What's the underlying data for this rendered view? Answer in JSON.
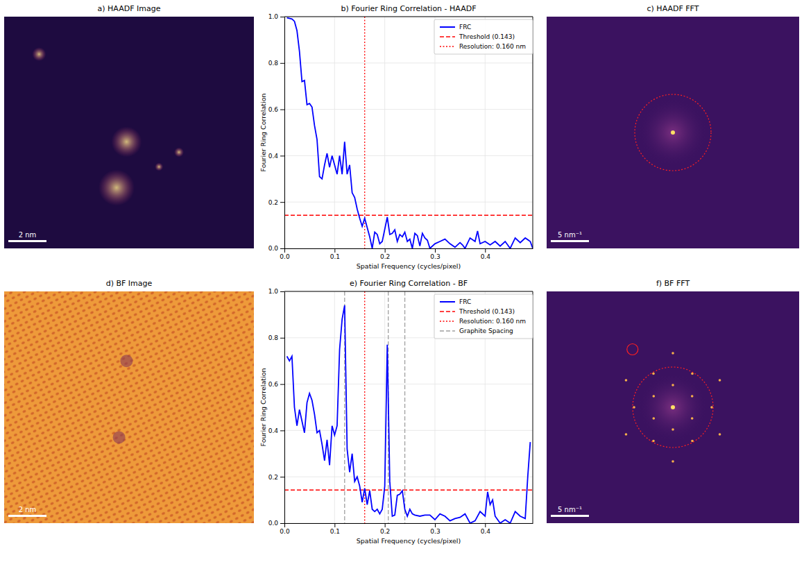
{
  "chart_data": [
    {
      "type": "image",
      "title": "a) HAADF Image",
      "annotations": [
        "2 nm"
      ]
    },
    {
      "type": "line",
      "title": "b) Fourier Ring Correlation - HAADF",
      "x_label": "Spatial Frequency (cycles/pixel)",
      "y_label": "Fourier Ring Correlation",
      "xlim": [
        0,
        0.495
      ],
      "ylim": [
        0,
        1
      ],
      "xticks": [
        {
          "value": 0,
          "label": "0.0"
        },
        {
          "value": 0.1,
          "label": "0.1"
        },
        {
          "value": 0.2,
          "label": "0.2"
        },
        {
          "value": 0.3,
          "label": "0.3"
        },
        {
          "value": 0.4,
          "label": "0.4"
        }
      ],
      "yticks": [
        {
          "value": 0,
          "label": "0.0"
        },
        {
          "value": 0.2,
          "label": "0.2"
        },
        {
          "value": 0.4,
          "label": "0.4"
        },
        {
          "value": 0.6,
          "label": "0.6"
        },
        {
          "value": 0.8,
          "label": "0.8"
        },
        {
          "value": 1,
          "label": "1.0"
        }
      ],
      "grid": true,
      "legend": "upper right",
      "x": [
        0.005,
        0.015,
        0.02,
        0.025,
        0.03,
        0.035,
        0.04,
        0.045,
        0.05,
        0.055,
        0.06,
        0.065,
        0.07,
        0.075,
        0.08,
        0.085,
        0.09,
        0.095,
        0.1,
        0.105,
        0.11,
        0.115,
        0.12,
        0.125,
        0.13,
        0.135,
        0.14,
        0.145,
        0.15,
        0.155,
        0.16,
        0.165,
        0.17,
        0.175,
        0.18,
        0.185,
        0.19,
        0.195,
        0.205,
        0.21,
        0.215,
        0.22,
        0.225,
        0.23,
        0.235,
        0.24,
        0.245,
        0.25,
        0.255,
        0.26,
        0.265,
        0.27,
        0.275,
        0.28,
        0.285,
        0.29,
        0.3,
        0.31,
        0.32,
        0.33,
        0.34,
        0.35,
        0.355,
        0.36,
        0.37,
        0.38,
        0.385,
        0.39,
        0.4,
        0.41,
        0.42,
        0.43,
        0.44,
        0.45,
        0.46,
        0.47,
        0.48,
        0.49,
        0.495
      ],
      "series": [
        {
          "name": "FRC",
          "color": "#0000ff",
          "line_style": "solid",
          "values": [
            0.995,
            0.99,
            0.98,
            0.94,
            0.85,
            0.72,
            0.725,
            0.62,
            0.625,
            0.61,
            0.53,
            0.47,
            0.31,
            0.3,
            0.36,
            0.41,
            0.35,
            0.4,
            0.36,
            0.32,
            0.4,
            0.32,
            0.46,
            0.32,
            0.36,
            0.24,
            0.22,
            0.17,
            0.13,
            0.095,
            0.13,
            0.09,
            0.05,
            0.0,
            0.07,
            0.06,
            0.02,
            0.03,
            0.135,
            0.06,
            0.065,
            0.08,
            0.03,
            0.06,
            0.05,
            0.07,
            0.03,
            0.04,
            0.0,
            0.065,
            0.055,
            0.01,
            0.065,
            0.045,
            0.035,
            0.0,
            0.02,
            0.03,
            0.04,
            0.02,
            0.005,
            0.025,
            0.015,
            0.0,
            0.045,
            0.03,
            0.075,
            0.02,
            0.03,
            0.015,
            0.03,
            0.01,
            0.03,
            0.0,
            0.045,
            0.025,
            0.045,
            0.03,
            0.0
          ]
        }
      ],
      "hlines": [
        {
          "name": "Threshold (0.143)",
          "value": 0.143,
          "color": "#ff0000",
          "line_style": "dashed"
        }
      ],
      "vlines": [
        {
          "name": "Resolution: 0.160 nm",
          "values": [
            0.16
          ],
          "color": "#ff0000",
          "line_style": "dotted"
        }
      ]
    },
    {
      "type": "image",
      "title": "c) HAADF FFT",
      "annotations": [
        "5 nm⁻¹"
      ]
    },
    {
      "type": "image",
      "title": "d) BF Image",
      "annotations": [
        "2 nm"
      ]
    },
    {
      "type": "line",
      "title": "e) Fourier Ring Correlation - BF",
      "x_label": "Spatial Frequency (cycles/pixel)",
      "y_label": "Fourier Ring Correlation",
      "xlim": [
        0,
        0.495
      ],
      "ylim": [
        0,
        1
      ],
      "xticks": [
        {
          "value": 0,
          "label": "0.0"
        },
        {
          "value": 0.1,
          "label": "0.1"
        },
        {
          "value": 0.2,
          "label": "0.2"
        },
        {
          "value": 0.3,
          "label": "0.3"
        },
        {
          "value": 0.4,
          "label": "0.4"
        }
      ],
      "yticks": [
        {
          "value": 0,
          "label": "0.0"
        },
        {
          "value": 0.2,
          "label": "0.2"
        },
        {
          "value": 0.4,
          "label": "0.4"
        },
        {
          "value": 0.6,
          "label": "0.6"
        },
        {
          "value": 0.8,
          "label": "0.8"
        },
        {
          "value": 1,
          "label": "1.0"
        }
      ],
      "grid": true,
      "legend": "upper right",
      "x": [
        0.005,
        0.01,
        0.015,
        0.02,
        0.025,
        0.03,
        0.035,
        0.04,
        0.045,
        0.05,
        0.055,
        0.06,
        0.065,
        0.07,
        0.075,
        0.08,
        0.085,
        0.09,
        0.095,
        0.1,
        0.105,
        0.11,
        0.115,
        0.12,
        0.125,
        0.13,
        0.135,
        0.14,
        0.145,
        0.15,
        0.155,
        0.16,
        0.165,
        0.17,
        0.175,
        0.18,
        0.185,
        0.19,
        0.195,
        0.2,
        0.205,
        0.21,
        0.215,
        0.22,
        0.225,
        0.23,
        0.235,
        0.24,
        0.245,
        0.25,
        0.255,
        0.26,
        0.27,
        0.28,
        0.29,
        0.3,
        0.31,
        0.32,
        0.33,
        0.34,
        0.35,
        0.36,
        0.37,
        0.38,
        0.39,
        0.4,
        0.405,
        0.41,
        0.415,
        0.42,
        0.43,
        0.44,
        0.45,
        0.46,
        0.47,
        0.48,
        0.485,
        0.49
      ],
      "series": [
        {
          "name": "FRC",
          "color": "#0000ff",
          "line_style": "solid",
          "values": [
            0.72,
            0.7,
            0.72,
            0.5,
            0.42,
            0.49,
            0.44,
            0.39,
            0.52,
            0.56,
            0.53,
            0.47,
            0.39,
            0.4,
            0.34,
            0.27,
            0.36,
            0.25,
            0.42,
            0.38,
            0.42,
            0.75,
            0.88,
            0.94,
            0.32,
            0.22,
            0.3,
            0.18,
            0.2,
            0.16,
            0.09,
            0.15,
            0.08,
            0.14,
            0.06,
            0.05,
            0.06,
            0.04,
            0.06,
            0.16,
            0.77,
            0.18,
            0.03,
            0.035,
            0.12,
            0.125,
            0.14,
            0.06,
            0.03,
            0.06,
            0.04,
            0.035,
            0.03,
            0.035,
            0.035,
            0.015,
            0.04,
            0.03,
            0.01,
            0.02,
            0.025,
            0.04,
            0.0,
            0.01,
            0.05,
            0.03,
            0.135,
            0.08,
            0.1,
            0.03,
            0.0,
            0.015,
            0.0,
            0.05,
            0.03,
            0.02,
            0.2,
            0.35
          ]
        }
      ],
      "hlines": [
        {
          "name": "Threshold (0.143)",
          "value": 0.143,
          "color": "#ff0000",
          "line_style": "dashed"
        }
      ],
      "vlines": [
        {
          "name": "Resolution: 0.160 nm",
          "values": [
            0.16
          ],
          "color": "#ff0000",
          "line_style": "dotted"
        },
        {
          "name": "Graphite Spacing",
          "values": [
            0.12,
            0.207,
            0.24
          ],
          "color": "#a0a0a0",
          "line_style": "dashed"
        }
      ]
    },
    {
      "type": "image",
      "title": "f) BF FFT",
      "annotations": [
        "5 nm⁻¹"
      ]
    }
  ]
}
